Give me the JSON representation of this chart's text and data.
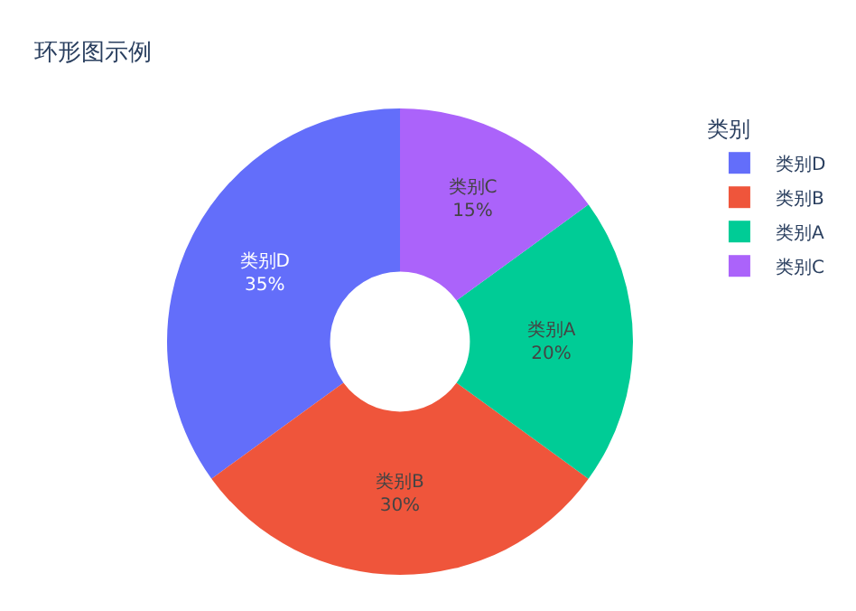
{
  "chart_data": {
    "type": "donut",
    "title": "环形图示例",
    "legend_title": "类别",
    "categories": [
      "类别D",
      "类别B",
      "类别A",
      "类别C"
    ],
    "values": [
      35,
      30,
      20,
      15
    ],
    "colors": [
      "#636efa",
      "#ef553b",
      "#00cc96",
      "#ab63fa"
    ],
    "value_labels": [
      "35%",
      "30%",
      "20%",
      "15%"
    ],
    "legend": "top right"
  }
}
